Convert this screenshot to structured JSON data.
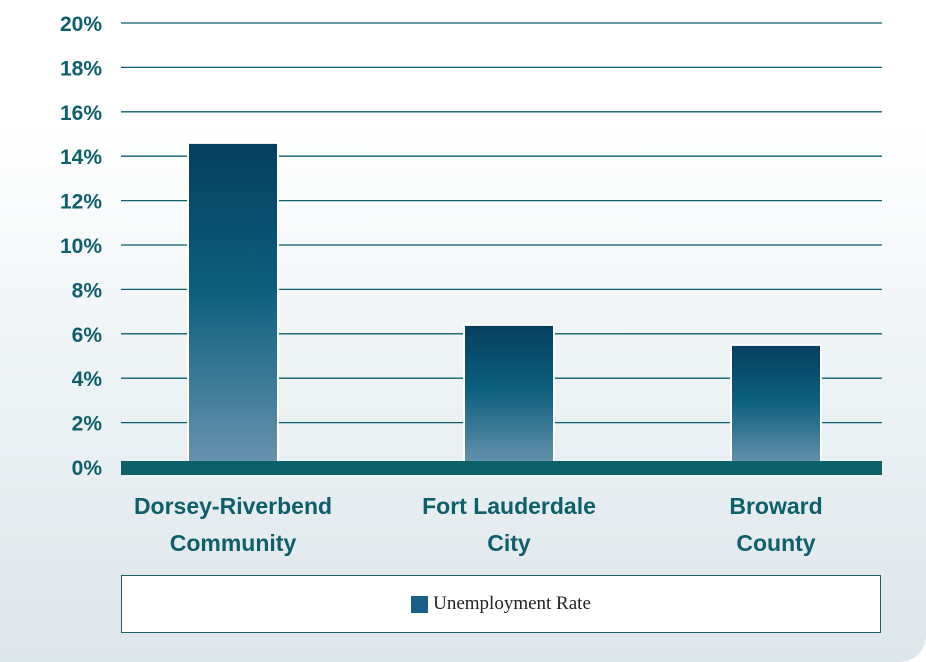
{
  "colors": {
    "text": "#0c5f6b",
    "gridline": "#0c5f6b",
    "baseline": "#0c6068",
    "bar_top": "#063f5e",
    "bar_mid": "#0a5f7c",
    "bar_bottom": "#6b94b0",
    "legend_swatch": "#1a5f88"
  },
  "chart_data": {
    "type": "bar",
    "categories": [
      [
        "Dorsey-Riverbend",
        "Community"
      ],
      [
        "Fort Lauderdale",
        "City"
      ],
      [
        "Broward",
        "County"
      ]
    ],
    "series": [
      {
        "name": "Unemployment Rate",
        "values": [
          14.6,
          6.4,
          5.5
        ]
      }
    ],
    "ylim": [
      0,
      20
    ],
    "yticks": [
      0,
      2,
      4,
      6,
      8,
      10,
      12,
      14,
      16,
      18,
      20
    ],
    "ytick_labels": [
      "0%",
      "2%",
      "4%",
      "6%",
      "8%",
      "10%",
      "12%",
      "14%",
      "16%",
      "18%",
      "20%"
    ],
    "grid": true,
    "legend_position": "bottom"
  },
  "legend": {
    "label": "Unemployment Rate",
    "icon": "square-swatch"
  }
}
